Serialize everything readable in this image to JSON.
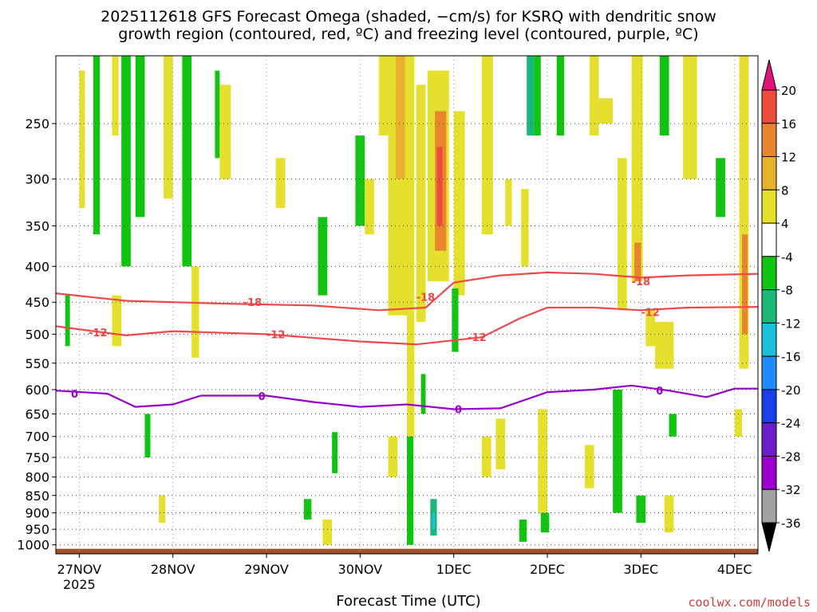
{
  "title_line1": "2025112618 GFS Forecast Omega (shaded, −cm/s) for KSRQ with dendritic snow",
  "title_line2": "growth region (contoured, red, ºC) and freezing level (contoured, purple, ºC)",
  "credit": "coolwx.com/models",
  "chart_data": {
    "type": "heatmap",
    "title": "2025112618 GFS Forecast Omega (shaded, −cm/s) for KSRQ with dendritic snow growth region (contoured, red, ºC) and freezing level (contoured, purple, ºC)",
    "xlabel": "Forecast Time (UTC)",
    "ylabel": "",
    "x_ticks": [
      "27NOV",
      "28NOV",
      "29NOV",
      "30NOV",
      "1DEC",
      "2DEC",
      "3DEC",
      "4DEC"
    ],
    "x_year": "2025",
    "x_range_days": [
      -0.25,
      7.25
    ],
    "y_ticks": [
      250,
      300,
      350,
      400,
      450,
      500,
      550,
      600,
      650,
      700,
      750,
      800,
      850,
      900,
      950,
      1000
    ],
    "y_range_hPa": [
      200,
      1030
    ],
    "y_scale": "log-pressure",
    "grid": true,
    "colorbar": {
      "levels": [
        -36,
        -32,
        -28,
        -24,
        -20,
        -16,
        -12,
        -8,
        -4,
        4,
        8,
        12,
        16,
        20
      ],
      "labels": [
        "20",
        "16",
        "12",
        "8",
        "4",
        "-4",
        "-8",
        "-12",
        "-16",
        "-20",
        "-24",
        "-28",
        "-32",
        "-36"
      ],
      "colors": [
        "#a0a0a0",
        "#9900cc",
        "#6a1fc8",
        "#1a3fe6",
        "#1e8cff",
        "#19c2d8",
        "#1bb87a",
        "#11c411",
        "#ffffff",
        "#e5e02e",
        "#e8b22e",
        "#e8862e",
        "#ee4c3a",
        "#e0157a"
      ]
    },
    "contours": [
      {
        "name": "-18",
        "color": "#f04848",
        "points": [
          [
            -0.25,
            437
          ],
          [
            0.5,
            448
          ],
          [
            1.5,
            452
          ],
          [
            2.5,
            455
          ],
          [
            3.2,
            462
          ],
          [
            3.7,
            458
          ],
          [
            4.0,
            422
          ],
          [
            4.5,
            412
          ],
          [
            5.0,
            408
          ],
          [
            5.5,
            410
          ],
          [
            6.0,
            415
          ],
          [
            6.5,
            412
          ],
          [
            7.25,
            410
          ]
        ]
      },
      {
        "name": "-12",
        "color": "#f04848",
        "points": [
          [
            -0.25,
            487
          ],
          [
            0.5,
            502
          ],
          [
            1.0,
            495
          ],
          [
            2.0,
            500
          ],
          [
            3.0,
            512
          ],
          [
            3.6,
            517
          ],
          [
            4.3,
            505
          ],
          [
            4.7,
            475
          ],
          [
            5.0,
            458
          ],
          [
            5.5,
            458
          ],
          [
            6.0,
            462
          ],
          [
            6.5,
            458
          ],
          [
            7.25,
            457
          ]
        ]
      },
      {
        "name": "0",
        "color": "#9900cc",
        "points": [
          [
            -0.25,
            602
          ],
          [
            0.3,
            608
          ],
          [
            0.6,
            635
          ],
          [
            1.0,
            630
          ],
          [
            1.3,
            612
          ],
          [
            2.0,
            612
          ],
          [
            2.5,
            625
          ],
          [
            3.0,
            635
          ],
          [
            3.5,
            630
          ],
          [
            4.0,
            640
          ],
          [
            4.5,
            638
          ],
          [
            5.0,
            605
          ],
          [
            5.5,
            600
          ],
          [
            5.9,
            592
          ],
          [
            6.3,
            602
          ],
          [
            6.7,
            615
          ],
          [
            7.0,
            598
          ],
          [
            7.25,
            598
          ]
        ]
      }
    ],
    "contour_labels": [
      {
        "text": "-18",
        "x": 1.85,
        "y": 450,
        "color": "#f04848"
      },
      {
        "text": "-12",
        "x": 0.2,
        "y": 497,
        "color": "#f04848"
      },
      {
        "text": "-12",
        "x": 2.1,
        "y": 500,
        "color": "#f04848"
      },
      {
        "text": "-18",
        "x": 3.7,
        "y": 442,
        "color": "#f04848"
      },
      {
        "text": "-12",
        "x": 4.25,
        "y": 505,
        "color": "#f04848"
      },
      {
        "text": "-18",
        "x": 6.0,
        "y": 420,
        "color": "#f04848"
      },
      {
        "text": "-12",
        "x": 6.1,
        "y": 465,
        "color": "#f04848"
      },
      {
        "text": "0",
        "x": -0.05,
        "y": 608,
        "color": "#9900cc"
      },
      {
        "text": "0",
        "x": 1.95,
        "y": 613,
        "color": "#9900cc"
      },
      {
        "text": "0",
        "x": 4.05,
        "y": 640,
        "color": "#9900cc"
      },
      {
        "text": "0",
        "x": 6.2,
        "y": 602,
        "color": "#9900cc"
      }
    ],
    "shaded_regions": [
      {
        "value": 6,
        "x": [
          0.0,
          0.06
        ],
        "p": [
          210,
          330
        ]
      },
      {
        "value": 6,
        "x": [
          0.35,
          0.42
        ],
        "p": [
          200,
          260
        ]
      },
      {
        "value": -6,
        "x": [
          0.15,
          0.22
        ],
        "p": [
          200,
          360
        ]
      },
      {
        "value": -6,
        "x": [
          0.45,
          0.55
        ],
        "p": [
          200,
          400
        ]
      },
      {
        "value": 6,
        "x": [
          0.35,
          0.45
        ],
        "p": [
          440,
          520
        ]
      },
      {
        "value": -6,
        "x": [
          0.6,
          0.7
        ],
        "p": [
          200,
          340
        ]
      },
      {
        "value": 6,
        "x": [
          0.9,
          1.0
        ],
        "p": [
          200,
          320
        ]
      },
      {
        "value": -6,
        "x": [
          1.1,
          1.2
        ],
        "p": [
          200,
          400
        ]
      },
      {
        "value": 6,
        "x": [
          1.2,
          1.28
        ],
        "p": [
          400,
          540
        ]
      },
      {
        "value": -6,
        "x": [
          1.45,
          1.5
        ],
        "p": [
          210,
          280
        ]
      },
      {
        "value": 6,
        "x": [
          1.5,
          1.62
        ],
        "p": [
          220,
          300
        ]
      },
      {
        "value": 6,
        "x": [
          2.1,
          2.2
        ],
        "p": [
          280,
          330
        ]
      },
      {
        "value": -6,
        "x": [
          2.55,
          2.65
        ],
        "p": [
          340,
          440
        ]
      },
      {
        "value": -6,
        "x": [
          2.95,
          3.05
        ],
        "p": [
          260,
          350
        ]
      },
      {
        "value": 6,
        "x": [
          3.05,
          3.15
        ],
        "p": [
          300,
          360
        ]
      },
      {
        "value": 6,
        "x": [
          3.2,
          3.3
        ],
        "p": [
          200,
          260
        ]
      },
      {
        "value": 6,
        "x": [
          3.3,
          3.52
        ],
        "p": [
          200,
          470
        ]
      },
      {
        "value": 10,
        "x": [
          3.38,
          3.48
        ],
        "p": [
          200,
          300
        ]
      },
      {
        "value": 6,
        "x": [
          3.5,
          3.58
        ],
        "p": [
          200,
          700
        ]
      },
      {
        "value": 6,
        "x": [
          3.6,
          3.7
        ],
        "p": [
          220,
          480
        ]
      },
      {
        "value": 6,
        "x": [
          3.72,
          3.95
        ],
        "p": [
          210,
          420
        ]
      },
      {
        "value": 12,
        "x": [
          3.8,
          3.92
        ],
        "p": [
          240,
          380
        ]
      },
      {
        "value": 16,
        "x": [
          3.82,
          3.88
        ],
        "p": [
          270,
          350
        ]
      },
      {
        "value": 6,
        "x": [
          4.0,
          4.12
        ],
        "p": [
          240,
          440
        ]
      },
      {
        "value": -6,
        "x": [
          3.98,
          4.05
        ],
        "p": [
          430,
          530
        ]
      },
      {
        "value": 6,
        "x": [
          4.3,
          4.42
        ],
        "p": [
          200,
          360
        ]
      },
      {
        "value": 6,
        "x": [
          4.55,
          4.62
        ],
        "p": [
          300,
          350
        ]
      },
      {
        "value": 6,
        "x": [
          4.72,
          4.8
        ],
        "p": [
          310,
          400
        ]
      },
      {
        "value": -12,
        "x": [
          4.78,
          4.86
        ],
        "p": [
          200,
          260
        ]
      },
      {
        "value": -6,
        "x": [
          4.86,
          4.93
        ],
        "p": [
          200,
          260
        ]
      },
      {
        "value": -6,
        "x": [
          5.1,
          5.18
        ],
        "p": [
          200,
          260
        ]
      },
      {
        "value": 6,
        "x": [
          5.45,
          5.55
        ],
        "p": [
          200,
          260
        ]
      },
      {
        "value": 6,
        "x": [
          5.5,
          5.7
        ],
        "p": [
          230,
          250
        ]
      },
      {
        "value": 6,
        "x": [
          5.75,
          5.85
        ],
        "p": [
          280,
          460
        ]
      },
      {
        "value": 6,
        "x": [
          5.9,
          6.02
        ],
        "p": [
          200,
          420
        ]
      },
      {
        "value": 12,
        "x": [
          5.93,
          6.0
        ],
        "p": [
          370,
          420
        ]
      },
      {
        "value": 6,
        "x": [
          6.05,
          6.15
        ],
        "p": [
          460,
          520
        ]
      },
      {
        "value": 6,
        "x": [
          6.15,
          6.35
        ],
        "p": [
          480,
          560
        ]
      },
      {
        "value": -6,
        "x": [
          6.2,
          6.3
        ],
        "p": [
          200,
          260
        ]
      },
      {
        "value": 6,
        "x": [
          6.45,
          6.6
        ],
        "p": [
          200,
          300
        ]
      },
      {
        "value": -6,
        "x": [
          6.8,
          6.9
        ],
        "p": [
          280,
          340
        ]
      },
      {
        "value": 6,
        "x": [
          7.05,
          7.15
        ],
        "p": [
          200,
          560
        ]
      },
      {
        "value": 12,
        "x": [
          7.08,
          7.14
        ],
        "p": [
          360,
          500
        ]
      },
      {
        "value": -6,
        "x": [
          5.7,
          5.8
        ],
        "p": [
          600,
          900
        ]
      },
      {
        "value": -6,
        "x": [
          5.95,
          6.05
        ],
        "p": [
          850,
          930
        ]
      },
      {
        "value": 6,
        "x": [
          6.25,
          6.35
        ],
        "p": [
          850,
          960
        ]
      },
      {
        "value": -6,
        "x": [
          6.3,
          6.38
        ],
        "p": [
          650,
          700
        ]
      },
      {
        "value": -6,
        "x": [
          3.5,
          3.57
        ],
        "p": [
          700,
          1000
        ]
      },
      {
        "value": -12,
        "x": [
          3.75,
          3.82
        ],
        "p": [
          860,
          970
        ]
      },
      {
        "value": -16,
        "x": [
          3.77,
          3.8
        ],
        "p": [
          900,
          950
        ]
      },
      {
        "value": -6,
        "x": [
          3.65,
          3.7
        ],
        "p": [
          570,
          650
        ]
      },
      {
        "value": 6,
        "x": [
          4.3,
          4.4
        ],
        "p": [
          700,
          800
        ]
      },
      {
        "value": 6,
        "x": [
          4.45,
          4.55
        ],
        "p": [
          660,
          780
        ]
      },
      {
        "value": 6,
        "x": [
          4.9,
          5.0
        ],
        "p": [
          640,
          900
        ]
      },
      {
        "value": -6,
        "x": [
          4.7,
          4.78
        ],
        "p": [
          920,
          990
        ]
      },
      {
        "value": -6,
        "x": [
          4.93,
          5.02
        ],
        "p": [
          900,
          960
        ]
      },
      {
        "value": 6,
        "x": [
          5.4,
          5.5
        ],
        "p": [
          720,
          830
        ]
      },
      {
        "value": 6,
        "x": [
          7.0,
          7.08
        ],
        "p": [
          640,
          700
        ]
      },
      {
        "value": -6,
        "x": [
          2.7,
          2.76
        ],
        "p": [
          690,
          790
        ]
      },
      {
        "value": -6,
        "x": [
          2.4,
          2.48
        ],
        "p": [
          860,
          920
        ]
      },
      {
        "value": 6,
        "x": [
          2.6,
          2.7
        ],
        "p": [
          920,
          1000
        ]
      },
      {
        "value": 6,
        "x": [
          3.3,
          3.4
        ],
        "p": [
          700,
          800
        ]
      },
      {
        "value": -6,
        "x": [
          0.7,
          0.76
        ],
        "p": [
          650,
          750
        ]
      },
      {
        "value": 6,
        "x": [
          0.85,
          0.92
        ],
        "p": [
          850,
          930
        ]
      },
      {
        "value": -6,
        "x": [
          -0.15,
          -0.1
        ],
        "p": [
          440,
          520
        ]
      }
    ],
    "ground_color": "#a0522d"
  }
}
